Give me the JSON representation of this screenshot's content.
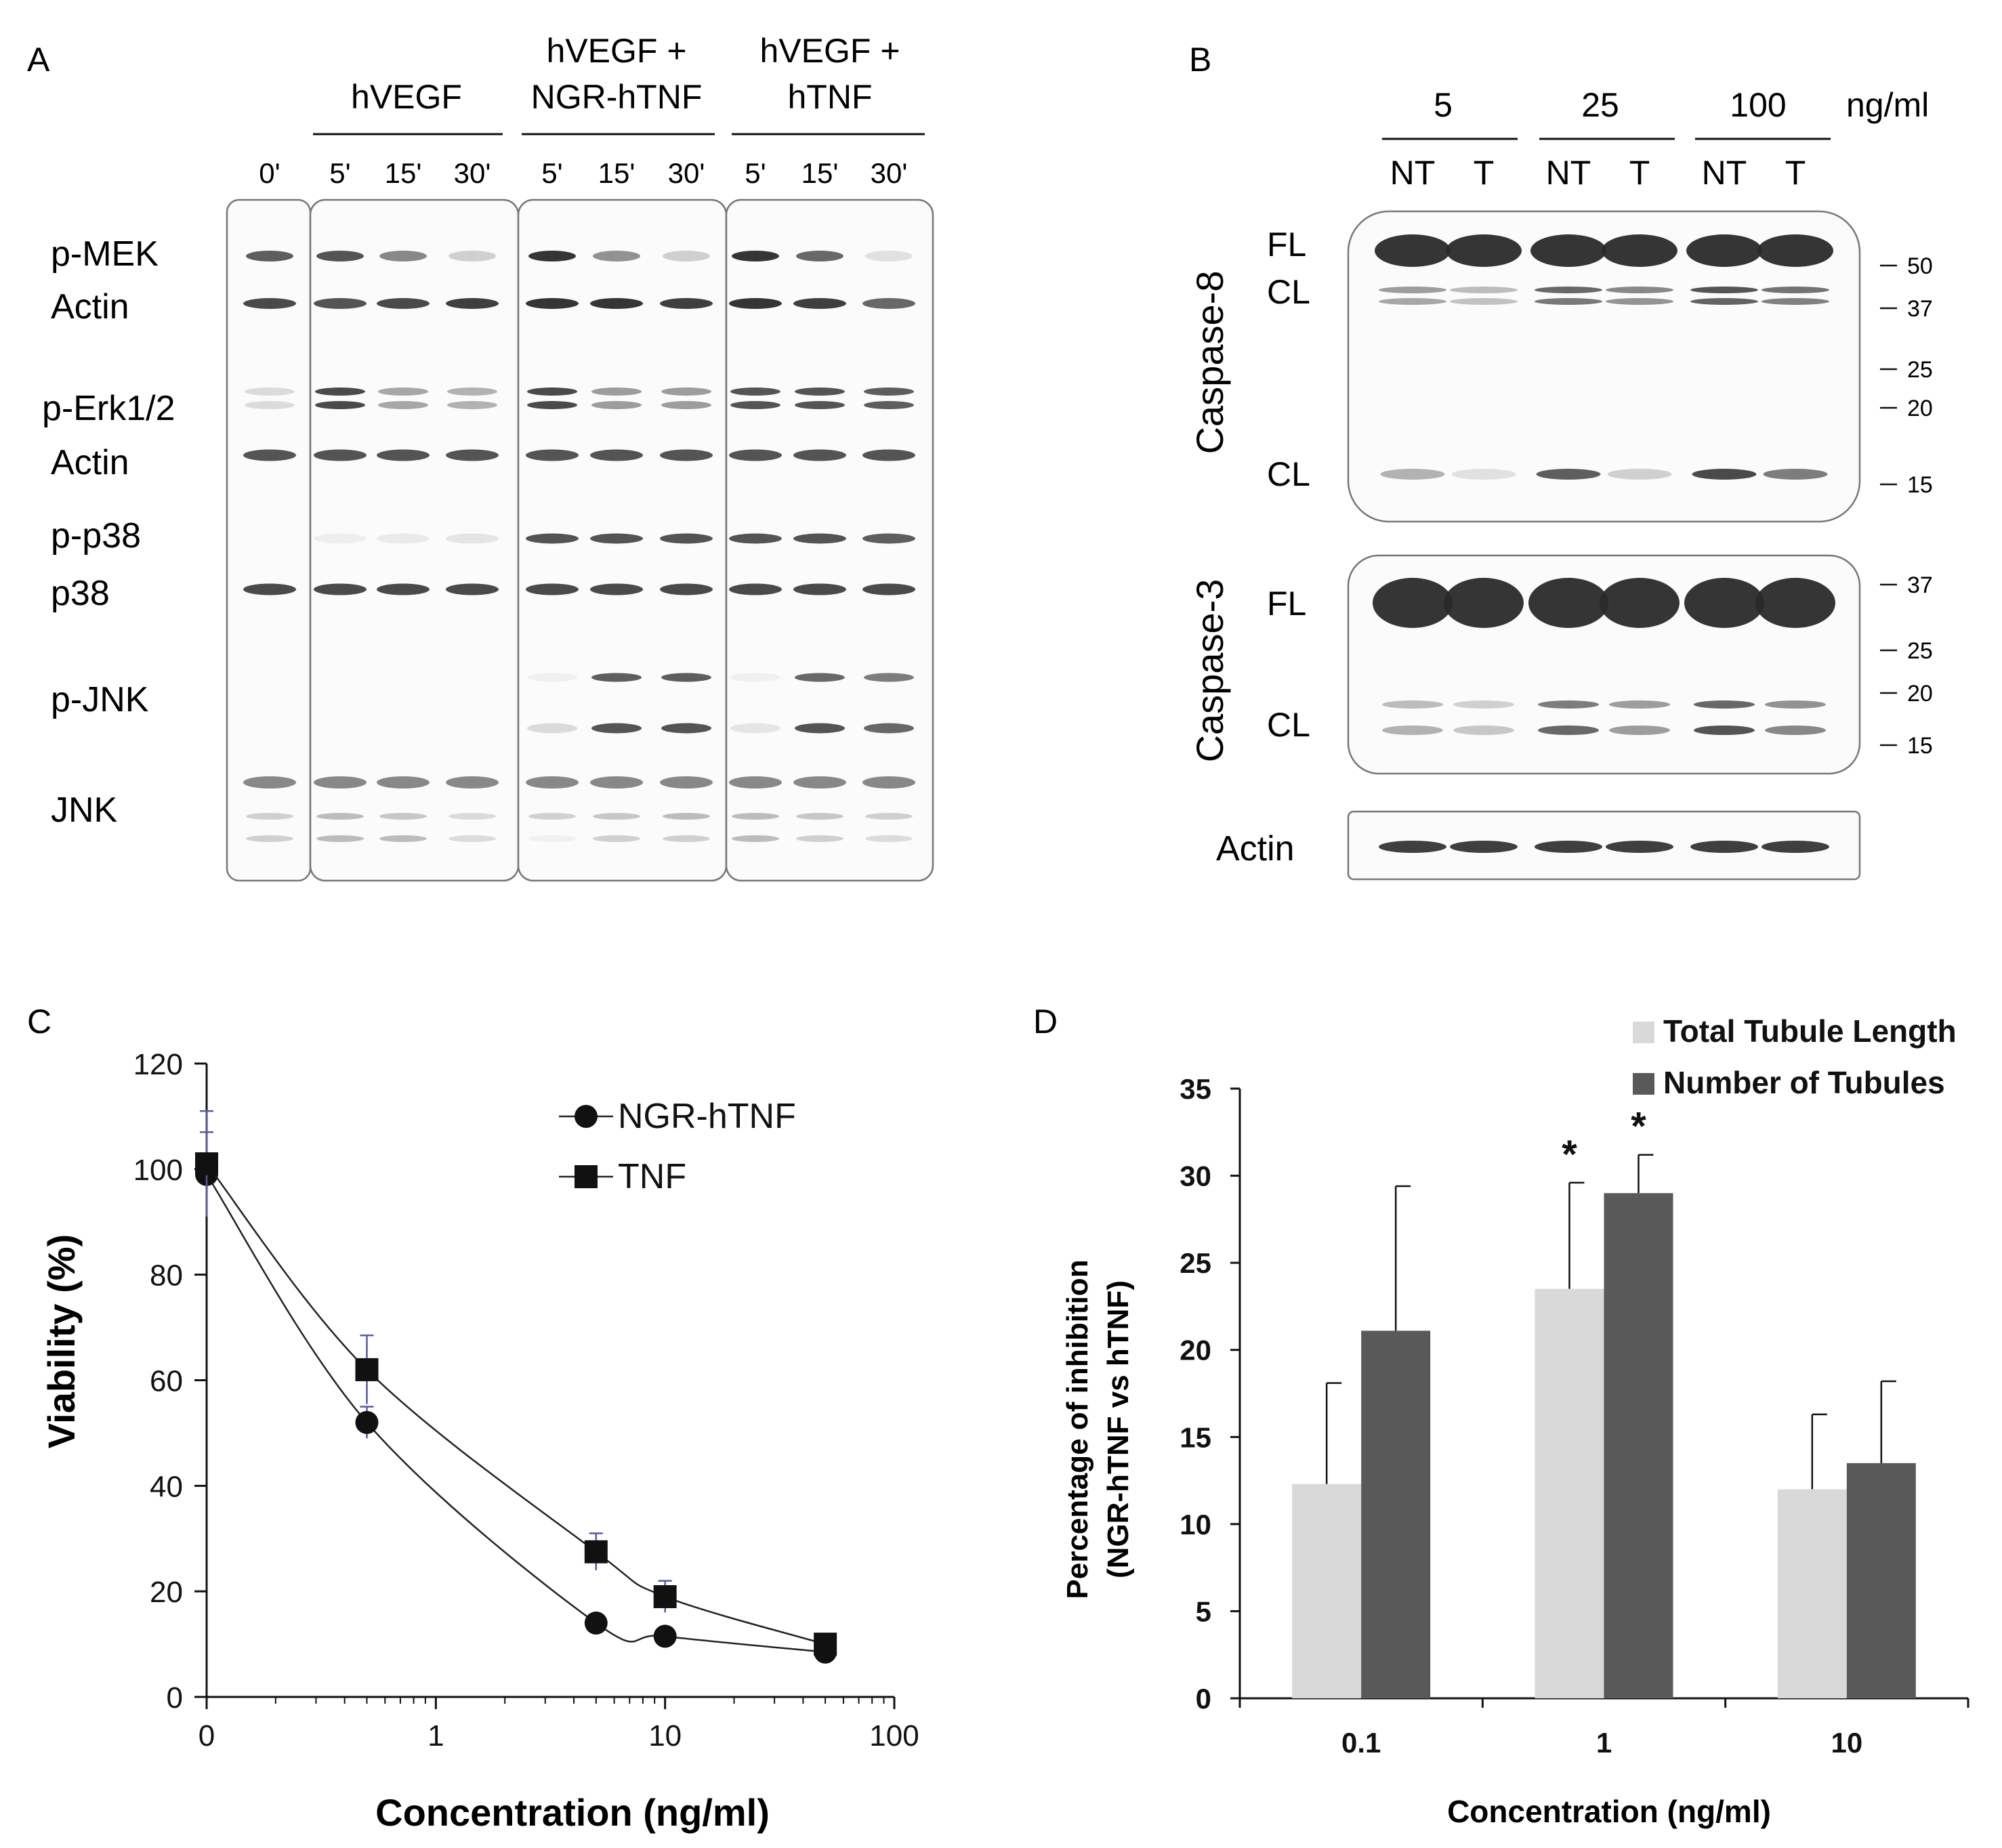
{
  "panels": {
    "a": {
      "label": "A",
      "zero_time": "0'",
      "groups": [
        {
          "lines": [
            "hVEGF"
          ],
          "times": [
            "5'",
            "15'",
            "30'"
          ]
        },
        {
          "lines": [
            "hVEGF +",
            "NGR-hTNF"
          ],
          "times": [
            "5'",
            "15'",
            "30'"
          ]
        },
        {
          "lines": [
            "hVEGF +",
            "hTNF"
          ],
          "times": [
            "5'",
            "15'",
            "30'"
          ]
        }
      ],
      "rows": [
        "p-MEK",
        "Actin",
        "p-Erk1/2",
        "Actin",
        "p-p38",
        "p38",
        "p-JNK",
        "JNK"
      ]
    },
    "b": {
      "label": "B",
      "unit": "ng/ml",
      "doses": [
        "5",
        "25",
        "100"
      ],
      "lane_labels": [
        "NT",
        "T",
        "NT",
        "T",
        "NT",
        "T"
      ],
      "caspase8": {
        "title": "Caspase-8",
        "labels": [
          "FL",
          "CL",
          "CL"
        ],
        "markers": [
          "50",
          "37",
          "25",
          "20",
          "15"
        ]
      },
      "caspase3": {
        "title": "Caspase-3",
        "labels": [
          "FL",
          "CL"
        ],
        "markers": [
          "37",
          "25",
          "20",
          "15"
        ]
      },
      "actin": {
        "title": "Actin"
      }
    },
    "c": {
      "label": "C"
    },
    "d": {
      "label": "D"
    }
  },
  "colors": {
    "axis": "#111111",
    "line": "#222222",
    "error_c": "#5a5a9a",
    "bar_light": "#d9d9d9",
    "bar_dark": "#595959",
    "band": "#2a2a2a"
  },
  "chart_data": [
    {
      "panel": "C",
      "type": "line",
      "xscale": "log",
      "xlabel": "Concentration (ng/ml)",
      "ylabel": "Viability (%)",
      "ylim": [
        0,
        120
      ],
      "yticks": [
        "0",
        "20",
        "40",
        "60",
        "80",
        "100",
        "120"
      ],
      "xticks": [
        "0",
        "1",
        "10",
        "100"
      ],
      "legend_position": "top-right",
      "series": [
        {
          "name": "NGR-hTNF",
          "marker": "circle",
          "x": [
            0.1,
            0.5,
            5,
            10,
            50
          ],
          "y": [
            99,
            52,
            14,
            11.5,
            8.5
          ],
          "err": [
            8,
            3,
            1,
            1,
            1
          ]
        },
        {
          "name": "TNF",
          "marker": "square",
          "x": [
            0.1,
            0.5,
            5,
            10,
            50
          ],
          "y": [
            101,
            62,
            27.5,
            19,
            10
          ],
          "err": [
            10,
            6.5,
            3.5,
            3,
            1
          ]
        }
      ]
    },
    {
      "panel": "D",
      "type": "bar",
      "xlabel": "Concentration (ng/ml)",
      "ylabel": "Percentage of inhibition",
      "ylabel2": "(NGR-hTNF vs hTNF)",
      "ylim": [
        0,
        35
      ],
      "yticks": [
        "0",
        "5",
        "10",
        "15",
        "20",
        "25",
        "30",
        "35"
      ],
      "categories": [
        "0.1",
        "1",
        "10"
      ],
      "legend_position": "top-right",
      "series": [
        {
          "name": "Total Tubule Length",
          "values": [
            12.3,
            23.5,
            12
          ],
          "err": [
            5.8,
            6.1,
            4.3
          ],
          "sig": [
            "",
            "*",
            ""
          ]
        },
        {
          "name": "Number of Tubules",
          "values": [
            21.1,
            29,
            13.5
          ],
          "err": [
            8.3,
            2.2,
            4.7
          ],
          "sig": [
            "",
            "*",
            ""
          ]
        }
      ]
    }
  ]
}
